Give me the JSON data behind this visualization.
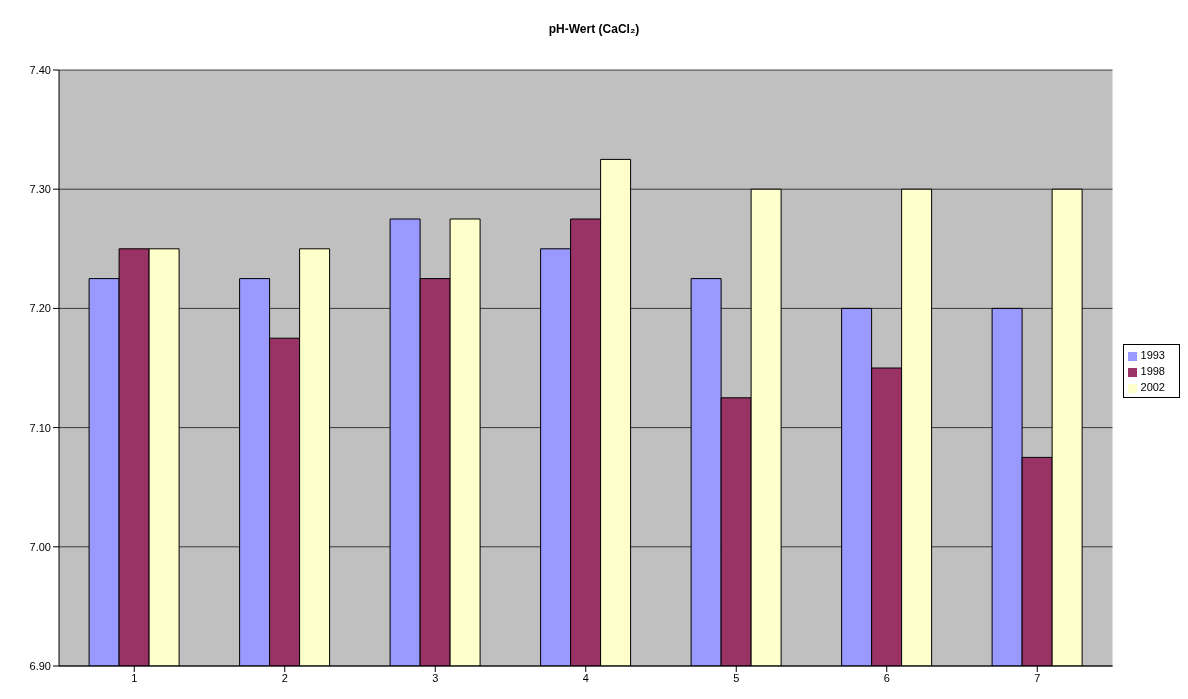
{
  "chart_data": {
    "type": "bar",
    "title": "pH-Wert (CaCl₂)",
    "categories": [
      "1",
      "2",
      "3",
      "4",
      "5",
      "6",
      "7"
    ],
    "series": [
      {
        "name": "1993",
        "color": "#9999ff",
        "values": [
          7.225,
          7.225,
          7.275,
          7.25,
          7.225,
          7.2,
          7.2
        ]
      },
      {
        "name": "1998",
        "color": "#993366",
        "values": [
          7.25,
          7.175,
          7.225,
          7.275,
          7.125,
          7.15,
          7.075
        ]
      },
      {
        "name": "2002",
        "color": "#ffffcc",
        "values": [
          7.25,
          7.25,
          7.275,
          7.325,
          7.3,
          7.3,
          7.3
        ]
      }
    ],
    "ylim": [
      6.9,
      7.4
    ],
    "yticks": [
      {
        "value": 6.9,
        "label": "6.90"
      },
      {
        "value": 7.0,
        "label": "7.00"
      },
      {
        "value": 7.1,
        "label": "7.10"
      },
      {
        "value": 7.2,
        "label": "7.20"
      },
      {
        "value": 7.3,
        "label": "7.30"
      },
      {
        "value": 7.4,
        "label": "7.40"
      }
    ],
    "grid": "y",
    "legend": "right"
  }
}
